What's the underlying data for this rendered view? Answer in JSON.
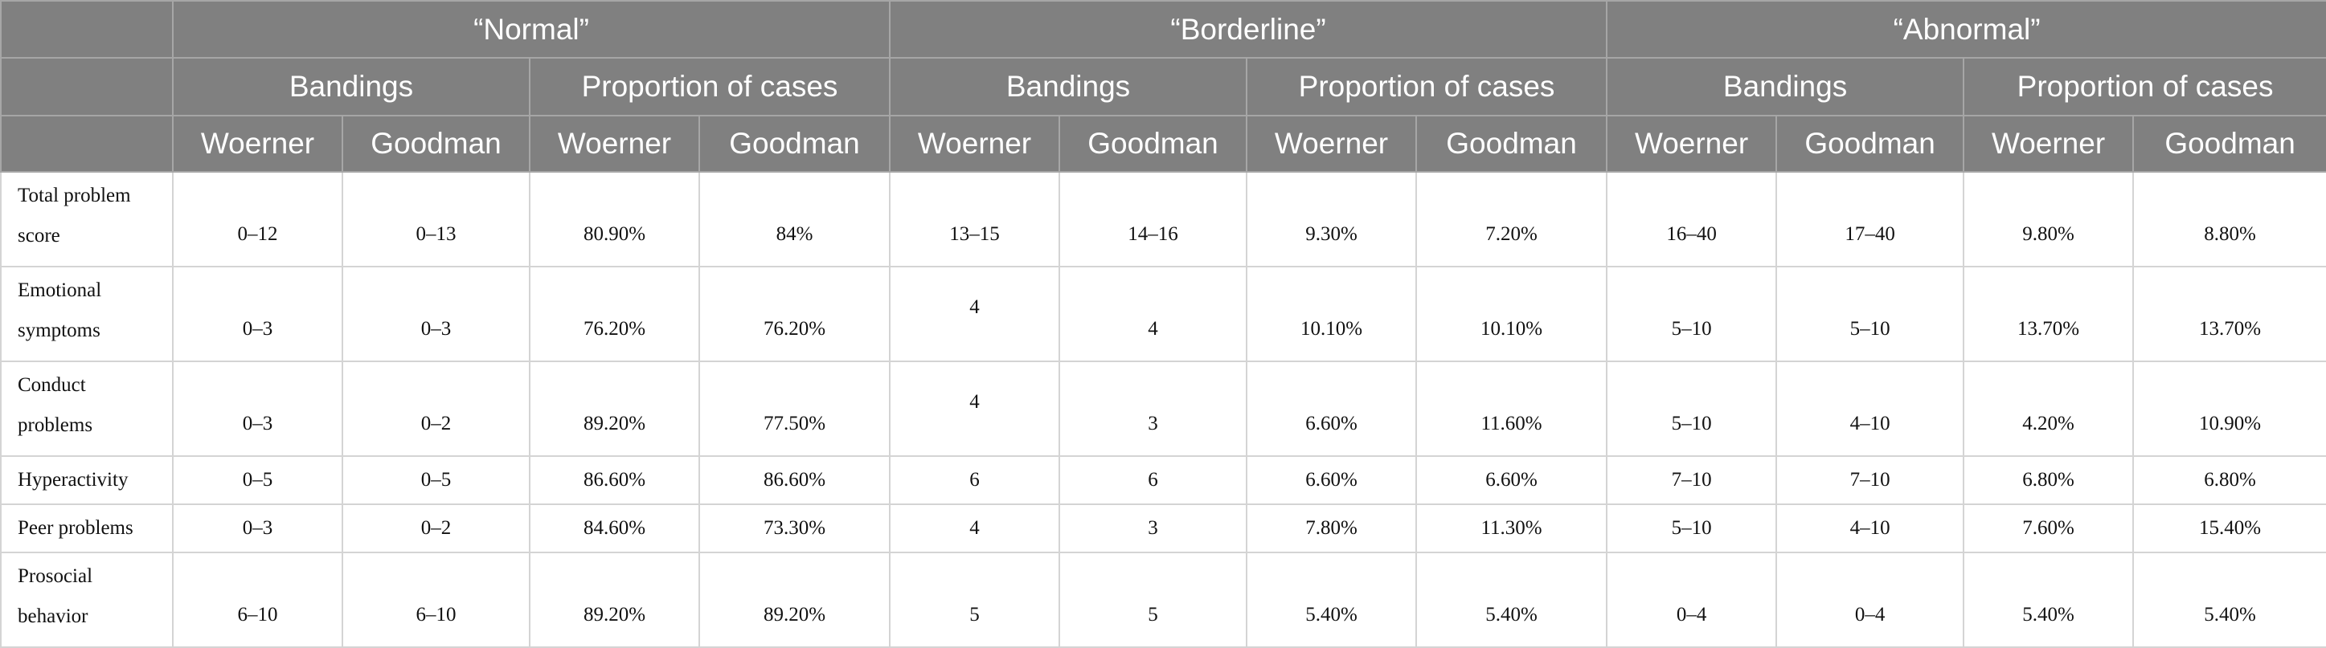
{
  "header": {
    "groups": [
      "“Normal”",
      "“Borderline”",
      "“Abnormal”"
    ],
    "subgroups": [
      "Bandings",
      "Proportion of cases"
    ],
    "sources": [
      "Woerner",
      "Goodman"
    ]
  },
  "rows": [
    {
      "label": "Total problem score",
      "cells": [
        "0–12",
        "0–13",
        "80.90%",
        "84%",
        "13–15",
        "14–16",
        "9.30%",
        "7.20%",
        "16–40",
        "17–40",
        "9.80%",
        "8.80%"
      ]
    },
    {
      "label": "Emotional symptoms",
      "cells": [
        "0–3",
        "0–3",
        "76.20%",
        "76.20%",
        "4",
        "4",
        "10.10%",
        "10.10%",
        "5–10",
        "5–10",
        "13.70%",
        "13.70%"
      ]
    },
    {
      "label": "Conduct problems",
      "cells": [
        "0–3",
        "0–2",
        "89.20%",
        "77.50%",
        "4",
        "3",
        "6.60%",
        "11.60%",
        "5–10",
        "4–10",
        "4.20%",
        "10.90%"
      ]
    },
    {
      "label": "Hyperactivity",
      "cells": [
        "0–5",
        "0–5",
        "86.60%",
        "86.60%",
        "6",
        "6",
        "6.60%",
        "6.60%",
        "7–10",
        "7–10",
        "6.80%",
        "6.80%"
      ]
    },
    {
      "label": "Peer problems",
      "cells": [
        "0–3",
        "0–2",
        "84.60%",
        "73.30%",
        "4",
        "3",
        "7.80%",
        "11.30%",
        "5–10",
        "4–10",
        "7.60%",
        "15.40%"
      ]
    },
    {
      "label": "Prosocial behavior",
      "cells": [
        "6–10",
        "6–10",
        "89.20%",
        "89.20%",
        "5",
        "5",
        "5.40%",
        "5.40%",
        "0–4",
        "0–4",
        "5.40%",
        "5.40%"
      ]
    }
  ]
}
